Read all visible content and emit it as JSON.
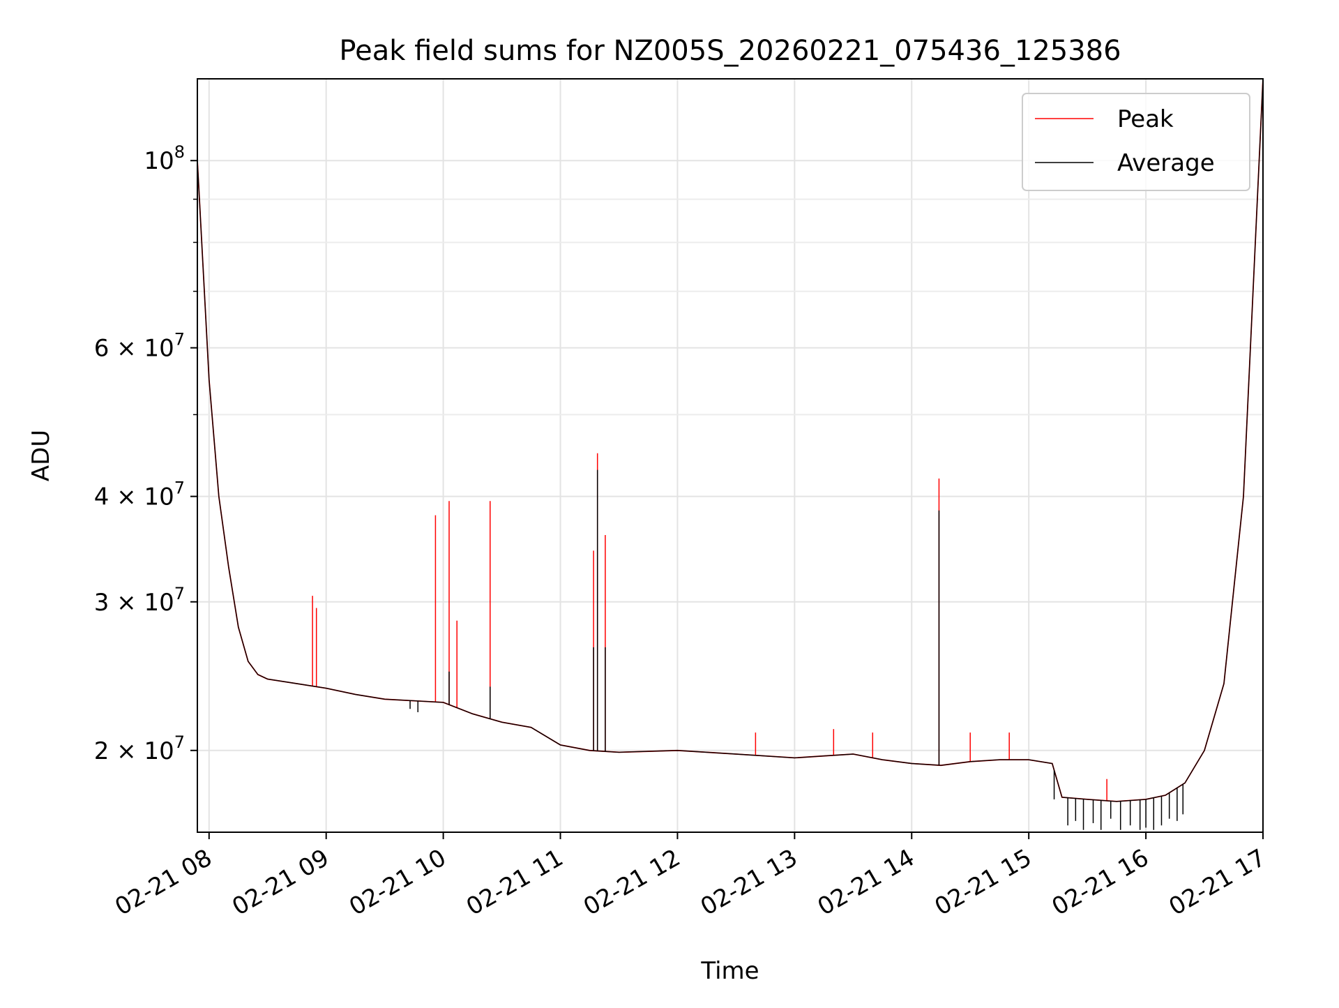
{
  "chart_data": {
    "type": "line",
    "title": "Peak field sums for NZ005S_20260221_075436_125386",
    "xlabel": "Time",
    "ylabel": "ADU",
    "yscale": "log",
    "xlim": [
      "2026-02-21 07:54",
      "2026-02-21 17:00"
    ],
    "ylim": [
      16000000,
      125000000
    ],
    "x_ticks": [
      {
        "value": "2026-02-21 08:00",
        "label": "02-21 08"
      },
      {
        "value": "2026-02-21 09:00",
        "label": "02-21 09"
      },
      {
        "value": "2026-02-21 10:00",
        "label": "02-21 10"
      },
      {
        "value": "2026-02-21 11:00",
        "label": "02-21 11"
      },
      {
        "value": "2026-02-21 12:00",
        "label": "02-21 12"
      },
      {
        "value": "2026-02-21 13:00",
        "label": "02-21 13"
      },
      {
        "value": "2026-02-21 14:00",
        "label": "02-21 14"
      },
      {
        "value": "2026-02-21 15:00",
        "label": "02-21 15"
      },
      {
        "value": "2026-02-21 16:00",
        "label": "02-21 16"
      },
      {
        "value": "2026-02-21 17:00",
        "label": "02-21 17"
      }
    ],
    "y_major_ticks": [
      {
        "value": 100000000,
        "base": "10",
        "exp": "8"
      },
      {
        "value": 60000000,
        "base": "6 × 10",
        "exp": "7"
      },
      {
        "value": 40000000,
        "base": "4 × 10",
        "exp": "7"
      },
      {
        "value": 30000000,
        "base": "3 × 10",
        "exp": "7"
      },
      {
        "value": 20000000,
        "base": "2 × 10",
        "exp": "7"
      }
    ],
    "y_minor_ticks": [
      90000000,
      80000000,
      70000000,
      50000000
    ],
    "grid": true,
    "legend_position": "top-right",
    "series": [
      {
        "name": "Peak",
        "color": "#ff0000",
        "baseline": [
          [
            "2026-02-21 07:54",
            100000000
          ],
          [
            "2026-02-21 08:00",
            55000000
          ],
          [
            "2026-02-21 08:05",
            40000000
          ],
          [
            "2026-02-21 08:10",
            33000000
          ],
          [
            "2026-02-21 08:15",
            28000000
          ],
          [
            "2026-02-21 08:20",
            25500000
          ],
          [
            "2026-02-21 08:25",
            24600000
          ],
          [
            "2026-02-21 08:30",
            24300000
          ],
          [
            "2026-02-21 08:45",
            24000000
          ],
          [
            "2026-02-21 09:00",
            23700000
          ],
          [
            "2026-02-21 09:15",
            23300000
          ],
          [
            "2026-02-21 09:30",
            23000000
          ],
          [
            "2026-02-21 09:45",
            22900000
          ],
          [
            "2026-02-21 10:00",
            22800000
          ],
          [
            "2026-02-21 10:15",
            22100000
          ],
          [
            "2026-02-21 10:30",
            21600000
          ],
          [
            "2026-02-21 10:45",
            21300000
          ],
          [
            "2026-02-21 11:00",
            20300000
          ],
          [
            "2026-02-21 11:15",
            20000000
          ],
          [
            "2026-02-21 11:30",
            19900000
          ],
          [
            "2026-02-21 12:00",
            20000000
          ],
          [
            "2026-02-21 12:30",
            19800000
          ],
          [
            "2026-02-21 13:00",
            19600000
          ],
          [
            "2026-02-21 13:15",
            19700000
          ],
          [
            "2026-02-21 13:30",
            19800000
          ],
          [
            "2026-02-21 13:45",
            19500000
          ],
          [
            "2026-02-21 14:00",
            19300000
          ],
          [
            "2026-02-21 14:15",
            19200000
          ],
          [
            "2026-02-21 14:30",
            19400000
          ],
          [
            "2026-02-21 14:45",
            19500000
          ],
          [
            "2026-02-21 15:00",
            19500000
          ],
          [
            "2026-02-21 15:12",
            19300000
          ],
          [
            "2026-02-21 15:17",
            17600000
          ],
          [
            "2026-02-21 15:30",
            17500000
          ],
          [
            "2026-02-21 15:45",
            17400000
          ],
          [
            "2026-02-21 16:00",
            17500000
          ],
          [
            "2026-02-21 16:10",
            17700000
          ],
          [
            "2026-02-21 16:20",
            18300000
          ],
          [
            "2026-02-21 16:30",
            20000000
          ],
          [
            "2026-02-21 16:40",
            24000000
          ],
          [
            "2026-02-21 16:50",
            40000000
          ],
          [
            "2026-02-21 17:00",
            125000000
          ]
        ],
        "spikes": [
          [
            "2026-02-21 08:53",
            30500000
          ],
          [
            "2026-02-21 08:55",
            29500000
          ],
          [
            "2026-02-21 09:56",
            38000000
          ],
          [
            "2026-02-21 10:03",
            39500000
          ],
          [
            "2026-02-21 10:07",
            28500000
          ],
          [
            "2026-02-21 10:24",
            39500000
          ],
          [
            "2026-02-21 11:17",
            34500000
          ],
          [
            "2026-02-21 11:19",
            45000000
          ],
          [
            "2026-02-21 11:23",
            36000000
          ],
          [
            "2026-02-21 14:14",
            42000000
          ],
          [
            "2026-02-21 12:40",
            21000000
          ],
          [
            "2026-02-21 13:20",
            21200000
          ],
          [
            "2026-02-21 13:40",
            21000000
          ],
          [
            "2026-02-21 14:30",
            21000000
          ],
          [
            "2026-02-21 14:50",
            21000000
          ],
          [
            "2026-02-21 15:40",
            18500000
          ]
        ]
      },
      {
        "name": "Average",
        "color": "#000000",
        "baseline": [
          [
            "2026-02-21 07:54",
            100000000
          ],
          [
            "2026-02-21 08:00",
            55000000
          ],
          [
            "2026-02-21 08:05",
            40000000
          ],
          [
            "2026-02-21 08:10",
            33000000
          ],
          [
            "2026-02-21 08:15",
            28000000
          ],
          [
            "2026-02-21 08:20",
            25500000
          ],
          [
            "2026-02-21 08:25",
            24600000
          ],
          [
            "2026-02-21 08:30",
            24300000
          ],
          [
            "2026-02-21 08:45",
            24000000
          ],
          [
            "2026-02-21 09:00",
            23700000
          ],
          [
            "2026-02-21 09:15",
            23300000
          ],
          [
            "2026-02-21 09:30",
            23000000
          ],
          [
            "2026-02-21 09:45",
            22900000
          ],
          [
            "2026-02-21 10:00",
            22800000
          ],
          [
            "2026-02-21 10:15",
            22100000
          ],
          [
            "2026-02-21 10:30",
            21600000
          ],
          [
            "2026-02-21 10:45",
            21300000
          ],
          [
            "2026-02-21 11:00",
            20300000
          ],
          [
            "2026-02-21 11:15",
            20000000
          ],
          [
            "2026-02-21 11:30",
            19900000
          ],
          [
            "2026-02-21 12:00",
            20000000
          ],
          [
            "2026-02-21 12:30",
            19800000
          ],
          [
            "2026-02-21 13:00",
            19600000
          ],
          [
            "2026-02-21 13:15",
            19700000
          ],
          [
            "2026-02-21 13:30",
            19800000
          ],
          [
            "2026-02-21 13:45",
            19500000
          ],
          [
            "2026-02-21 14:00",
            19300000
          ],
          [
            "2026-02-21 14:15",
            19200000
          ],
          [
            "2026-02-21 14:30",
            19400000
          ],
          [
            "2026-02-21 14:45",
            19500000
          ],
          [
            "2026-02-21 15:00",
            19500000
          ],
          [
            "2026-02-21 15:12",
            19300000
          ],
          [
            "2026-02-21 15:17",
            17600000
          ],
          [
            "2026-02-21 15:30",
            17500000
          ],
          [
            "2026-02-21 15:45",
            17400000
          ],
          [
            "2026-02-21 16:00",
            17500000
          ],
          [
            "2026-02-21 16:10",
            17700000
          ],
          [
            "2026-02-21 16:20",
            18300000
          ],
          [
            "2026-02-21 16:30",
            20000000
          ],
          [
            "2026-02-21 16:40",
            24000000
          ],
          [
            "2026-02-21 16:50",
            40000000
          ],
          [
            "2026-02-21 17:00",
            125000000
          ]
        ],
        "spikes": [
          [
            "2026-02-21 11:19",
            43000000
          ],
          [
            "2026-02-21 14:14",
            38500000
          ],
          [
            "2026-02-21 11:17",
            26500000
          ],
          [
            "2026-02-21 11:23",
            26500000
          ],
          [
            "2026-02-21 10:03",
            24800000
          ],
          [
            "2026-02-21 10:24",
            23800000
          ]
        ],
        "dips": [
          [
            "2026-02-21 09:43",
            22400000
          ],
          [
            "2026-02-21 09:47",
            22200000
          ],
          [
            "2026-02-21 15:13",
            17500000
          ],
          [
            "2026-02-21 15:20",
            16300000
          ],
          [
            "2026-02-21 15:24",
            16500000
          ],
          [
            "2026-02-21 15:28",
            16100000
          ],
          [
            "2026-02-21 15:33",
            16400000
          ],
          [
            "2026-02-21 15:37",
            16100000
          ],
          [
            "2026-02-21 15:42",
            16600000
          ],
          [
            "2026-02-21 15:47",
            16100000
          ],
          [
            "2026-02-21 15:52",
            16300000
          ],
          [
            "2026-02-21 15:57",
            16100000
          ],
          [
            "2026-02-21 16:00",
            16200000
          ],
          [
            "2026-02-21 16:04",
            16100000
          ],
          [
            "2026-02-21 16:08",
            16300000
          ],
          [
            "2026-02-21 16:12",
            16600000
          ],
          [
            "2026-02-21 16:16",
            16500000
          ],
          [
            "2026-02-21 16:19",
            16800000
          ]
        ]
      }
    ]
  }
}
